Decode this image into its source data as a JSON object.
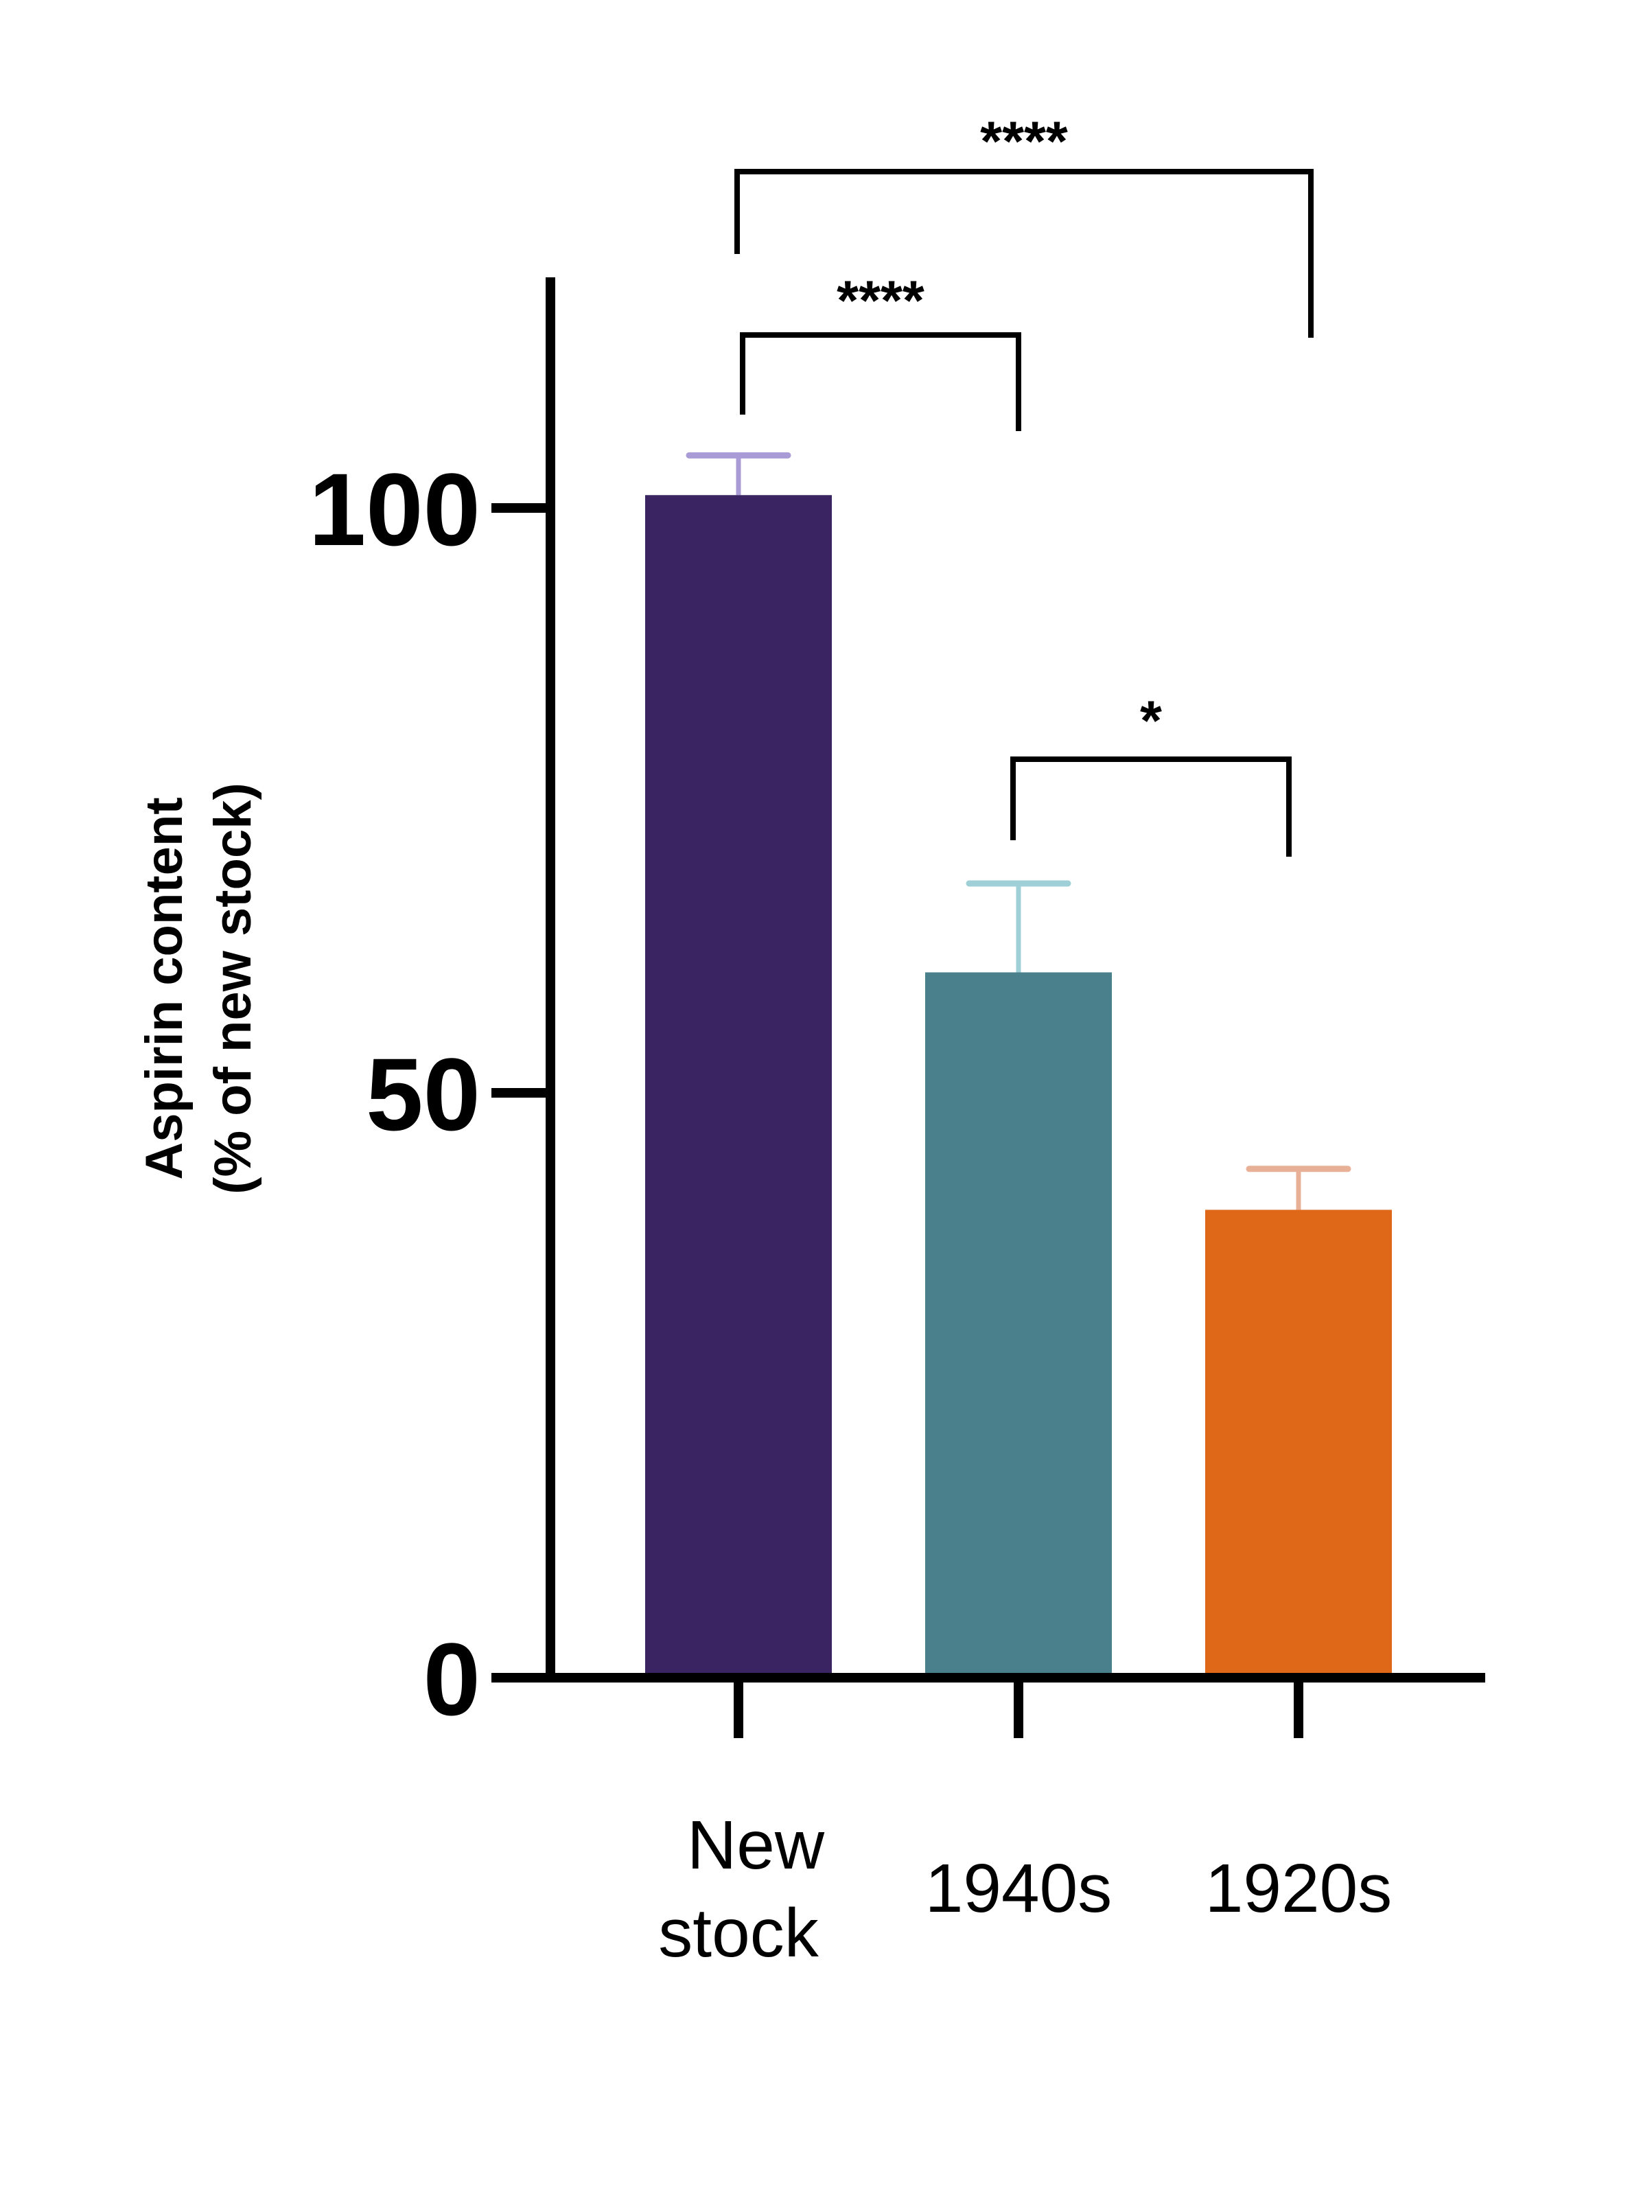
{
  "chart_data": {
    "type": "bar",
    "title": "",
    "ylabel": [
      "Aspirin content",
      "(% of new stock)"
    ],
    "xlabel": "",
    "ylim": [
      0,
      120
    ],
    "yticks": [
      0,
      50,
      100
    ],
    "ytick_labels": [
      "0",
      "50",
      "100"
    ],
    "grid": false,
    "categories": [
      {
        "label_lines": [
          "New",
          "stock"
        ]
      },
      {
        "label_lines": [
          "1940s"
        ]
      },
      {
        "label_lines": [
          "1920s"
        ]
      }
    ],
    "values": [
      101.1,
      60.3,
      40.0
    ],
    "error_upper": [
      104.5,
      67.9,
      43.5
    ],
    "bar_colors": [
      "#3a2562",
      "#4a7f8c",
      "#de6718"
    ],
    "error_colors": [
      "#a99bd6",
      "#9fd0d8",
      "#e8b097"
    ],
    "comparisons": [
      {
        "from": 0,
        "to": 1,
        "label": "****"
      },
      {
        "from": 0,
        "to": 2,
        "label": "****"
      },
      {
        "from": 1,
        "to": 2,
        "label": "*"
      }
    ]
  }
}
